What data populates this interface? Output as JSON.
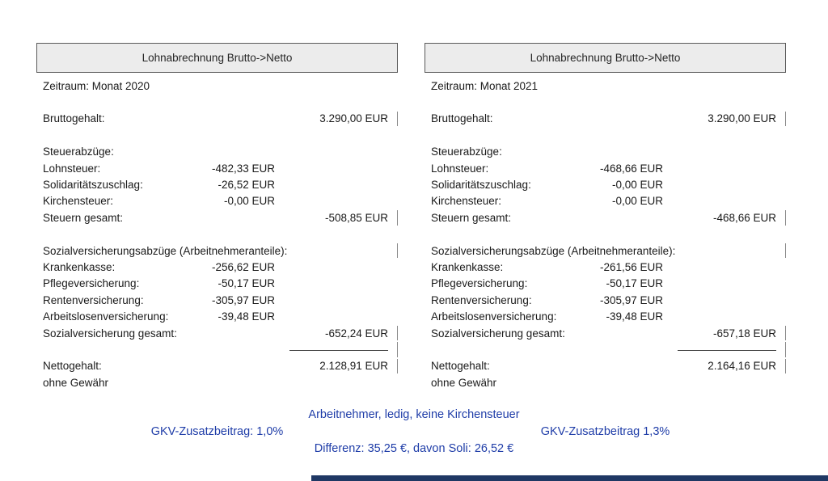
{
  "panels": [
    {
      "title": "Lohnabrechnung Brutto->Netto",
      "period": "Zeitraum: Monat 2020",
      "gross_label": "Bruttogehalt:",
      "gross_value": "3.290,00 EUR",
      "tax_section_label": "Steuerabzüge:",
      "tax_rows": [
        {
          "label": "Lohnsteuer:",
          "value": "-482,33 EUR"
        },
        {
          "label": "Solidaritätszuschlag:",
          "value": "-26,52 EUR"
        },
        {
          "label": "Kirchensteuer:",
          "value": "-0,00 EUR"
        }
      ],
      "tax_total_label": "Steuern gesamt:",
      "tax_total_value": "-508,85 EUR",
      "social_section_label": "Sozialversicherungsabzüge (Arbeitnehmeranteile):",
      "social_rows": [
        {
          "label": "Krankenkasse:",
          "value": "-256,62 EUR"
        },
        {
          "label": "Pflegeversicherung:",
          "value": "-50,17 EUR"
        },
        {
          "label": "Rentenversicherung:",
          "value": "-305,97 EUR"
        },
        {
          "label": "Arbeitslosenversicherung:",
          "value": "-39,48 EUR"
        }
      ],
      "social_total_label": "Sozialversicherung gesamt:",
      "social_total_value": "-652,24 EUR",
      "net_label": "Nettogehalt:",
      "net_value": "2.128,91 EUR",
      "disclaimer": "ohne Gewähr"
    },
    {
      "title": "Lohnabrechnung Brutto->Netto",
      "period": "Zeitraum: Monat 2021",
      "gross_label": "Bruttogehalt:",
      "gross_value": "3.290,00 EUR",
      "tax_section_label": "Steuerabzüge:",
      "tax_rows": [
        {
          "label": "Lohnsteuer:",
          "value": "-468,66 EUR"
        },
        {
          "label": "Solidaritätszuschlag:",
          "value": "-0,00 EUR"
        },
        {
          "label": "Kirchensteuer:",
          "value": "-0,00 EUR"
        }
      ],
      "tax_total_label": "Steuern gesamt:",
      "tax_total_value": "-468,66 EUR",
      "social_section_label": "Sozialversicherungsabzüge (Arbeitnehmeranteile):",
      "social_rows": [
        {
          "label": "Krankenkasse:",
          "value": "-261,56 EUR"
        },
        {
          "label": "Pflegeversicherung:",
          "value": "-50,17 EUR"
        },
        {
          "label": "Rentenversicherung:",
          "value": "-305,97 EUR"
        },
        {
          "label": "Arbeitslosenversicherung:",
          "value": "-39,48 EUR"
        }
      ],
      "social_total_label": "Sozialversicherung gesamt:",
      "social_total_value": "-657,18 EUR",
      "net_label": "Nettogehalt:",
      "net_value": "2.164,16 EUR",
      "disclaimer": "ohne Gewähr"
    }
  ],
  "footer": {
    "line1": "Arbeitnehmer, ledig, keine Kirchensteuer",
    "gkv_left": "GKV-Zusatzbeitrag: 1,0%",
    "gkv_right": "GKV-Zusatzbeitrag 1,3%",
    "line3": "Differenz: 35,25 €, davon Soli: 26,52 €"
  },
  "colors": {
    "footer_text": "#1f3da8",
    "bottom_bar": "#1f3864",
    "header_bg": "#ececec",
    "header_border": "#595959",
    "text": "#1a1a1a"
  }
}
